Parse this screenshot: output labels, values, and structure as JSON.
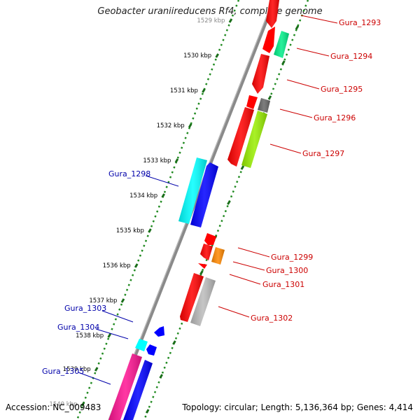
{
  "title": "Geobacter uraniireducens Rf4, complete genome",
  "accession": "Accession: NC_009483",
  "topology": "Topology: circular; Length: 5,136,364 bp; Genes: 4,414",
  "colors": {
    "backbone": "#888888",
    "tick_dots": "#228b22",
    "label_top_strand": "#cc0000",
    "label_bottom_strand": "#0000aa"
  },
  "kbp_ticks": [
    "1529 kbp",
    "1530 kbp",
    "1531 kbp",
    "1532 kbp",
    "1533 kbp",
    "1534 kbp",
    "1535 kbp",
    "1536 kbp",
    "1537 kbp",
    "1538 kbp",
    "1539 kbp",
    "1540 kbp"
  ],
  "genes": [
    {
      "label": "Gura_1293",
      "color": "#ff0000"
    },
    {
      "label": "Gura_1294",
      "color": "#00ee88"
    },
    {
      "label": "Gura_1295",
      "color": "#ff0000"
    },
    {
      "label": "Gura_1296",
      "color": "#666666"
    },
    {
      "label": "Gura_1297",
      "color": "#99ee00"
    },
    {
      "label": "Gura_1298",
      "color": "#00ffff"
    },
    {
      "label": "Gura_1299",
      "color": "#ff0000"
    },
    {
      "label": "Gura_1300",
      "color": "#ff8800"
    },
    {
      "label": "Gura_1301",
      "color": "#ff0000"
    },
    {
      "label": "Gura_1302",
      "color": "#bbbbbb"
    },
    {
      "label": "Gura_1303",
      "color": "#0000ff"
    },
    {
      "label": "Gura_1304",
      "color": "#00ffff"
    },
    {
      "label": "Gura_1305",
      "color": "#ff1493"
    }
  ]
}
